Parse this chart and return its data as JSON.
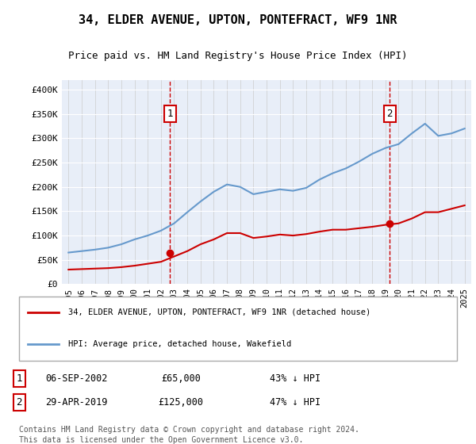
{
  "title": "34, ELDER AVENUE, UPTON, PONTEFRACT, WF9 1NR",
  "subtitle": "Price paid vs. HM Land Registry's House Price Index (HPI)",
  "legend_line1": "34, ELDER AVENUE, UPTON, PONTEFRACT, WF9 1NR (detached house)",
  "legend_line2": "HPI: Average price, detached house, Wakefield",
  "annotation1": {
    "label": "1",
    "date": "06-SEP-2002",
    "price": 65000,
    "pct": "43% ↓ HPI",
    "x_year": 2002.68
  },
  "annotation2": {
    "label": "2",
    "date": "29-APR-2019",
    "price": 125000,
    "pct": "47% ↓ HPI",
    "x_year": 2019.32
  },
  "footer1": "Contains HM Land Registry data © Crown copyright and database right 2024.",
  "footer2": "This data is licensed under the Open Government Licence v3.0.",
  "hpi_color": "#6699cc",
  "price_color": "#cc0000",
  "background_color": "#e8eef8",
  "plot_bg_color": "#e8eef8",
  "annotation_box_color": "#cc0000",
  "ylim": [
    0,
    420000
  ],
  "xlim": [
    1994.5,
    2025.5
  ],
  "yticks": [
    0,
    50000,
    100000,
    150000,
    200000,
    250000,
    300000,
    350000,
    400000
  ],
  "ytick_labels": [
    "£0",
    "£50K",
    "£100K",
    "£150K",
    "£200K",
    "£250K",
    "£300K",
    "£350K",
    "£400K"
  ],
  "xticks": [
    1995,
    1996,
    1997,
    1998,
    1999,
    2000,
    2001,
    2002,
    2003,
    2004,
    2005,
    2006,
    2007,
    2008,
    2009,
    2010,
    2011,
    2012,
    2013,
    2014,
    2015,
    2016,
    2017,
    2018,
    2019,
    2020,
    2021,
    2022,
    2023,
    2024,
    2025
  ],
  "hpi_years": [
    1995,
    1996,
    1997,
    1998,
    1999,
    2000,
    2001,
    2002,
    2003,
    2004,
    2005,
    2006,
    2007,
    2008,
    2009,
    2010,
    2011,
    2012,
    2013,
    2014,
    2015,
    2016,
    2017,
    2018,
    2019,
    2020,
    2021,
    2022,
    2023,
    2024,
    2025
  ],
  "hpi_values": [
    65000,
    68000,
    71000,
    75000,
    82000,
    92000,
    100000,
    110000,
    125000,
    148000,
    170000,
    190000,
    205000,
    200000,
    185000,
    190000,
    195000,
    192000,
    198000,
    215000,
    228000,
    238000,
    252000,
    268000,
    280000,
    288000,
    310000,
    330000,
    305000,
    310000,
    320000
  ],
  "price_years": [
    1995,
    1996,
    1997,
    1998,
    1999,
    2000,
    2001,
    2002,
    2003,
    2004,
    2005,
    2006,
    2007,
    2008,
    2009,
    2010,
    2011,
    2012,
    2013,
    2014,
    2015,
    2016,
    2017,
    2018,
    2019,
    2020,
    2021,
    2022,
    2023,
    2024,
    2025
  ],
  "price_values": [
    30000,
    31000,
    32000,
    33000,
    35000,
    38000,
    42000,
    46000,
    57000,
    68000,
    82000,
    92000,
    105000,
    105000,
    95000,
    98000,
    102000,
    100000,
    103000,
    108000,
    112000,
    112000,
    115000,
    118000,
    122000,
    125000,
    135000,
    148000,
    148000,
    155000,
    162000
  ]
}
